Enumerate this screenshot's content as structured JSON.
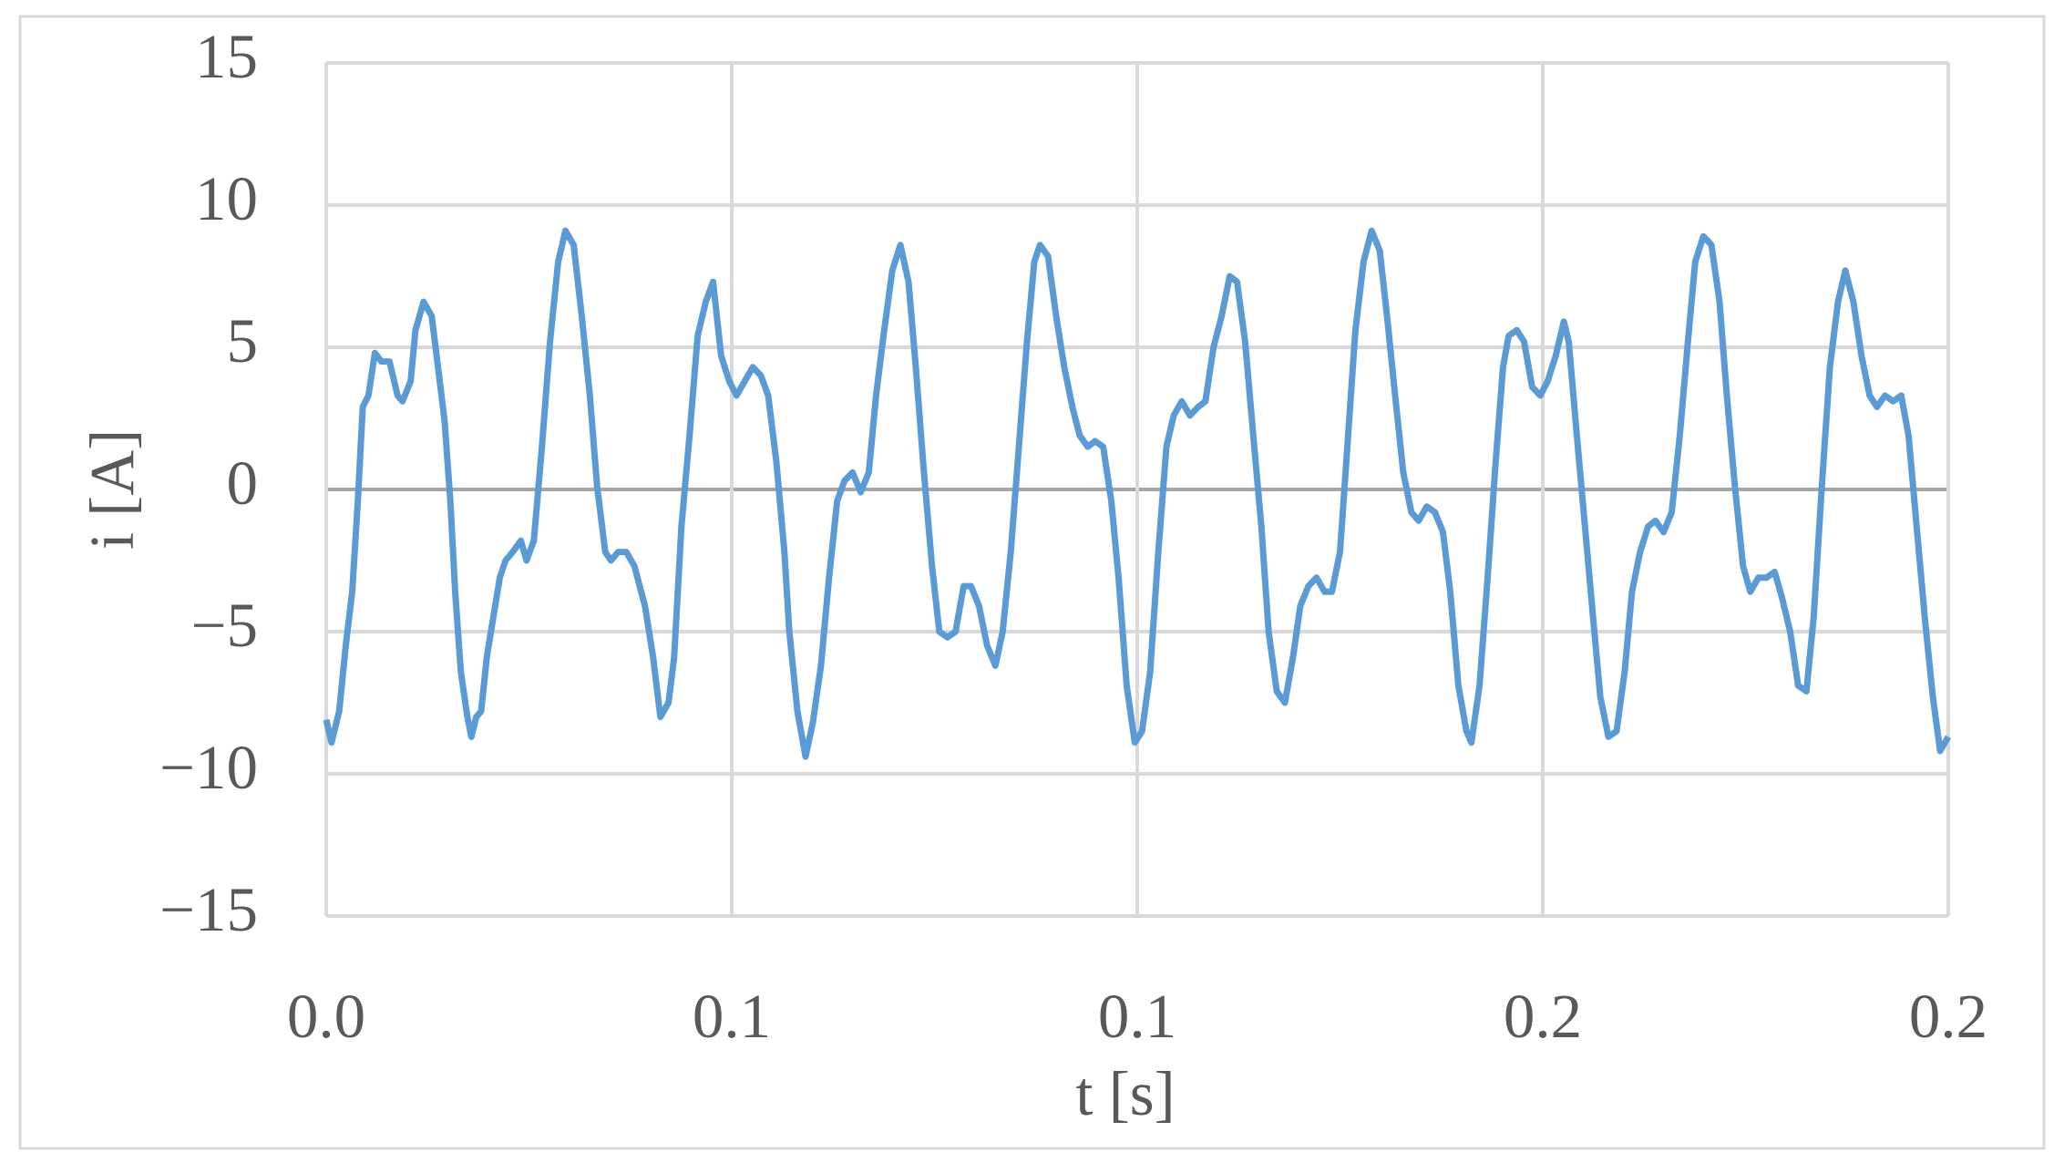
{
  "chart_data": {
    "type": "line",
    "x_label": "t [s]",
    "y_label": "i [A]",
    "xlim": [
      0,
      0.2
    ],
    "ylim": [
      -15,
      15
    ],
    "xticks": [
      {
        "value": 0,
        "label": "0.0"
      },
      {
        "value": 0.05,
        "label": "0.1"
      },
      {
        "value": 0.1,
        "label": "0.1"
      },
      {
        "value": 0.15,
        "label": "0.2"
      },
      {
        "value": 0.2,
        "label": "0.2"
      }
    ],
    "yticks": [
      {
        "value": -15,
        "label": "−15"
      },
      {
        "value": -10,
        "label": "−10"
      },
      {
        "value": -5,
        "label": "−5"
      },
      0,
      5,
      10,
      15
    ],
    "grid": true,
    "x": [
      0,
      0.00065,
      0.0016,
      0.0024,
      0.0032,
      0.0039,
      0.0045,
      0.0052,
      0.006,
      0.0068,
      0.0078,
      0.0088,
      0.0094,
      0.0104,
      0.011,
      0.012,
      0.013,
      0.014,
      0.0146,
      0.0153,
      0.0159,
      0.0166,
      0.0174,
      0.0179,
      0.0185,
      0.0191,
      0.0198,
      0.0206,
      0.0214,
      0.0221,
      0.023,
      0.024,
      0.0247,
      0.0256,
      0.0266,
      0.0276,
      0.0286,
      0.0295,
      0.0305,
      0.0315,
      0.0325,
      0.0334,
      0.0344,
      0.0351,
      0.036,
      0.037,
      0.038,
      0.0393,
      0.0403,
      0.0412,
      0.0422,
      0.0429,
      0.0438,
      0.0448,
      0.0458,
      0.0468,
      0.0477,
      0.0487,
      0.0497,
      0.0506,
      0.0516,
      0.0526,
      0.0536,
      0.0545,
      0.0555,
      0.0565,
      0.0571,
      0.0581,
      0.0591,
      0.06,
      0.061,
      0.062,
      0.063,
      0.0639,
      0.0649,
      0.0659,
      0.0669,
      0.0678,
      0.0688,
      0.0698,
      0.0708,
      0.0718,
      0.0727,
      0.0737,
      0.0747,
      0.0756,
      0.0766,
      0.0776,
      0.0786,
      0.0795,
      0.0805,
      0.0815,
      0.0825,
      0.0834,
      0.0844,
      0.0854,
      0.0864,
      0.0873,
      0.088,
      0.089,
      0.09,
      0.091,
      0.092,
      0.0929,
      0.0939,
      0.0948,
      0.0958,
      0.0968,
      0.0977,
      0.0987,
      0.0997,
      0.1006,
      0.1016,
      0.1026,
      0.1036,
      0.1045,
      0.1055,
      0.1065,
      0.1075,
      0.1084,
      0.1094,
      0.1104,
      0.1114,
      0.1123,
      0.1133,
      0.1143,
      0.1153,
      0.1162,
      0.1172,
      0.1182,
      0.1192,
      0.1201,
      0.1211,
      0.1221,
      0.1231,
      0.124,
      0.125,
      0.126,
      0.1269,
      0.1279,
      0.1289,
      0.1299,
      0.1308,
      0.1318,
      0.1328,
      0.1338,
      0.1347,
      0.1357,
      0.1367,
      0.1377,
      0.1386,
      0.1396,
      0.1406,
      0.1412,
      0.1422,
      0.1432,
      0.1442,
      0.1451,
      0.1458,
      0.1468,
      0.1477,
      0.1487,
      0.1497,
      0.1506,
      0.1516,
      0.1526,
      0.1532,
      0.1542,
      0.1552,
      0.1562,
      0.1571,
      0.1581,
      0.1591,
      0.1601,
      0.161,
      0.162,
      0.163,
      0.1639,
      0.1649,
      0.1659,
      0.1669,
      0.1679,
      0.1688,
      0.1698,
      0.1708,
      0.1718,
      0.1727,
      0.1737,
      0.1747,
      0.1756,
      0.1766,
      0.1776,
      0.1786,
      0.1795,
      0.1805,
      0.1815,
      0.1825,
      0.1834,
      0.1844,
      0.1854,
      0.1864,
      0.1873,
      0.1883,
      0.1893,
      0.1903,
      0.1912,
      0.1922,
      0.1932,
      0.1942,
      0.1951,
      0.1961,
      0.1971,
      0.1981,
      0.199,
      0.2
    ],
    "series": [
      {
        "color": "#5b9bd5",
        "values": [
          -8.1,
          -8.9,
          -7.8,
          -5.5,
          -3.6,
          -0.4,
          2.9,
          3.3,
          4.8,
          4.5,
          4.5,
          3.3,
          3.1,
          3.8,
          5.6,
          6.6,
          6.1,
          3.8,
          2.4,
          -0.4,
          -3.6,
          -6.4,
          -8.0,
          -8.7,
          -8.0,
          -7.8,
          -5.9,
          -4.5,
          -3.1,
          -2.5,
          -2.2,
          -1.8,
          -2.5,
          -1.8,
          1.5,
          5.2,
          8.0,
          9.1,
          8.6,
          6.1,
          3.3,
          0.1,
          -2.2,
          -2.5,
          -2.2,
          -2.2,
          -2.7,
          -4.1,
          -5.9,
          -8.0,
          -7.5,
          -5.9,
          -1.3,
          1.9,
          5.4,
          6.6,
          7.3,
          4.7,
          3.8,
          3.3,
          3.8,
          4.3,
          4.0,
          3.3,
          1.0,
          -2.2,
          -5.0,
          -7.8,
          -9.4,
          -8.2,
          -6.2,
          -3.1,
          -0.4,
          0.3,
          0.6,
          -0.1,
          0.6,
          3.3,
          5.6,
          7.7,
          8.6,
          7.3,
          4.3,
          0.6,
          -2.7,
          -5.0,
          -5.2,
          -5.0,
          -3.4,
          -3.4,
          -4.1,
          -5.5,
          -6.2,
          -5.0,
          -2.2,
          1.5,
          5.2,
          8.0,
          8.6,
          8.2,
          6.1,
          4.3,
          2.9,
          1.9,
          1.5,
          1.7,
          1.5,
          -0.4,
          -3.1,
          -6.9,
          -8.9,
          -8.5,
          -6.4,
          -2.2,
          1.5,
          2.6,
          3.1,
          2.6,
          2.9,
          3.1,
          5.0,
          6.1,
          7.5,
          7.3,
          5.2,
          1.9,
          -1.3,
          -5.0,
          -7.1,
          -7.5,
          -5.9,
          -4.1,
          -3.4,
          -3.1,
          -3.6,
          -3.6,
          -2.2,
          1.9,
          5.6,
          8.0,
          9.1,
          8.4,
          6.1,
          3.3,
          0.6,
          -0.8,
          -1.1,
          -0.6,
          -0.8,
          -1.5,
          -3.6,
          -6.9,
          -8.5,
          -8.9,
          -6.9,
          -3.1,
          1.0,
          4.3,
          5.4,
          5.6,
          5.2,
          3.6,
          3.3,
          3.8,
          4.7,
          5.9,
          5.2,
          1.9,
          -1.3,
          -4.5,
          -7.3,
          -8.7,
          -8.5,
          -6.4,
          -3.6,
          -2.2,
          -1.3,
          -1.1,
          -1.5,
          -0.8,
          1.9,
          5.2,
          8.0,
          8.9,
          8.6,
          6.6,
          3.3,
          0.1,
          -2.7,
          -3.6,
          -3.1,
          -3.1,
          -2.9,
          -3.8,
          -5.0,
          -6.9,
          -7.1,
          -4.5,
          0.1,
          4.3,
          6.6,
          7.7,
          6.6,
          4.7,
          3.3,
          2.9,
          3.3,
          3.1,
          3.3,
          1.9,
          -1.3,
          -4.5,
          -7.3,
          -9.2,
          -8.7
        ]
      }
    ]
  }
}
